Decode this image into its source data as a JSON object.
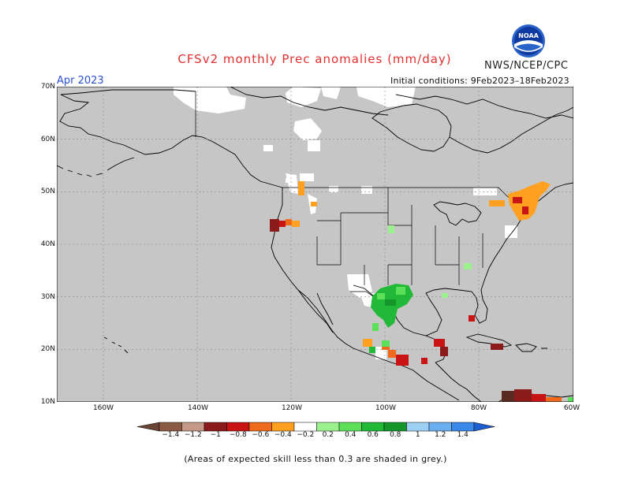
{
  "title": "CFSv2 monthly Prec anomalies (mm/day)",
  "agency": "NWS/NCEP/CPC",
  "logo_text": "NOAA",
  "month_label": "Apr 2023",
  "initial_conditions": "Initial conditions: 9Feb2023–18Feb2023",
  "lat_labels": [
    "70N",
    "60N",
    "50N",
    "40N",
    "30N",
    "20N",
    "10N"
  ],
  "lon_labels": [
    "160W",
    "140W",
    "120W",
    "100W",
    "80W",
    "60W"
  ],
  "colorbar": {
    "labels": [
      "−1.4",
      "−1.2",
      "−1",
      "−0.8",
      "−0.6",
      "−0.4",
      "−0.2",
      "0.2",
      "0.4",
      "0.6",
      "0.8",
      "1",
      "1.2",
      "1.4"
    ],
    "colors": [
      "#8a5a44",
      "#c49a86",
      "#8b1a1a",
      "#c81414",
      "#ef6a1a",
      "#ffa020",
      "#ffffff",
      "#9cf08e",
      "#5ce05a",
      "#22b838",
      "#15962a",
      "#9ed0f4",
      "#6ab0f0",
      "#3a88e8"
    ],
    "low_arrow_color": "#6a4434",
    "high_arrow_color": "#1e5fd0"
  },
  "note": "(Areas of expected skill less than 0.3 are shaded in grey.)",
  "map_colors": {
    "land_mask_grey": "#c6c6c6",
    "coast": "#000000"
  }
}
